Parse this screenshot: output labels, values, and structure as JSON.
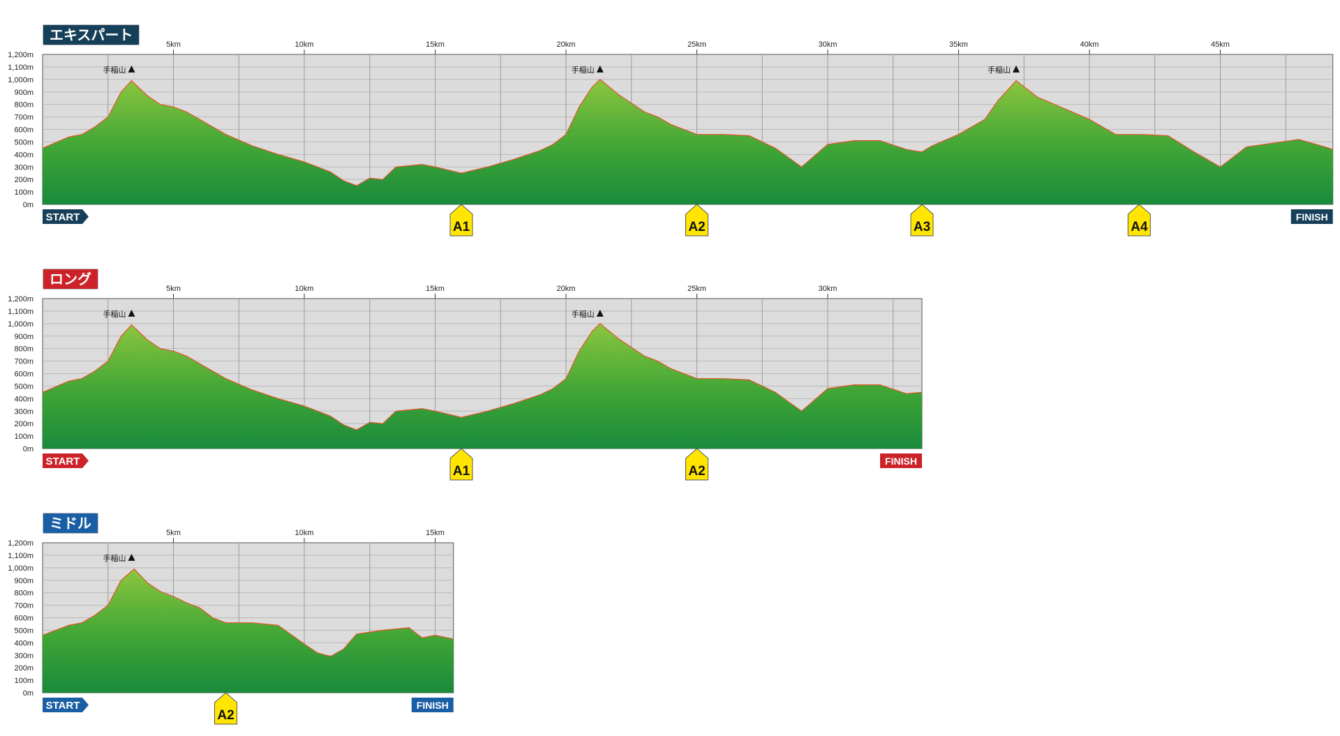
{
  "courses": [
    {
      "name": "エキスパート",
      "color": "#163f59",
      "distance_km": 49.3,
      "km_ticks": [
        5,
        10,
        15,
        20,
        25,
        30,
        35,
        40,
        45
      ],
      "y_ticks": [
        "1,200m",
        "1,100m",
        "1,000m",
        "900m",
        "800m",
        "700m",
        "600m",
        "500m",
        "400m",
        "300m",
        "200m",
        "100m",
        "0m"
      ],
      "start_label": "START",
      "finish_label": "FINISH",
      "aid_stations": [
        {
          "label": "A1",
          "km": 16.0
        },
        {
          "label": "A2",
          "km": 25.0
        },
        {
          "label": "A3",
          "km": 33.6
        },
        {
          "label": "A4",
          "km": 41.9
        }
      ],
      "peaks": [
        {
          "label": "手稲山",
          "km": 3.4
        },
        {
          "label": "手稲山",
          "km": 21.3
        },
        {
          "label": "手稲山",
          "km": 37.2
        }
      ]
    },
    {
      "name": "ロング",
      "color": "#cc2229",
      "distance_km": 33.6,
      "km_ticks": [
        5,
        10,
        15,
        20,
        25,
        30
      ],
      "y_ticks": [
        "1,200m",
        "1,100m",
        "1,000m",
        "900m",
        "800m",
        "700m",
        "600m",
        "500m",
        "400m",
        "300m",
        "200m",
        "100m",
        "0m"
      ],
      "start_label": "START",
      "finish_label": "FINISH",
      "aid_stations": [
        {
          "label": "A1",
          "km": 16.0
        },
        {
          "label": "A2",
          "km": 25.0
        }
      ],
      "peaks": [
        {
          "label": "手稲山",
          "km": 3.4
        },
        {
          "label": "手稲山",
          "km": 21.3
        }
      ]
    },
    {
      "name": "ミドル",
      "color": "#1a5fa6",
      "distance_km": 15.7,
      "km_ticks": [
        5,
        10,
        15
      ],
      "y_ticks": [
        "1,200m",
        "1,100m",
        "1,000m",
        "900m",
        "800m",
        "700m",
        "600m",
        "500m",
        "400m",
        "300m",
        "200m",
        "100m",
        "0m"
      ],
      "start_label": "START",
      "finish_label": "FINISH",
      "aid_stations": [
        {
          "label": "A2",
          "km": 7.0
        }
      ],
      "peaks": [
        {
          "label": "手稲山",
          "km": 3.4
        }
      ]
    }
  ],
  "chart_data": [
    {
      "type": "area",
      "title": "エキスパート",
      "x_unit": "km",
      "y_unit": "m",
      "xlim": [
        0,
        49.3
      ],
      "ylim": [
        0,
        1200
      ],
      "x": [
        0,
        1,
        1.5,
        2,
        2.5,
        3,
        3.4,
        4,
        4.5,
        5,
        5.5,
        6,
        7,
        8,
        9,
        10,
        11,
        11.5,
        12,
        12.5,
        13,
        13.5,
        14,
        14.5,
        15,
        16,
        17,
        18,
        19,
        19.5,
        20,
        20.5,
        21,
        21.3,
        22,
        23,
        23.5,
        24,
        25,
        26,
        27,
        28,
        29,
        30,
        31,
        32,
        33,
        33.6,
        34,
        35,
        36,
        36.5,
        37.2,
        38,
        39,
        40,
        41,
        42,
        43,
        44,
        45,
        46,
        47,
        48,
        49,
        49.3
      ],
      "y": [
        450,
        540,
        560,
        620,
        700,
        900,
        990,
        870,
        800,
        780,
        740,
        680,
        560,
        470,
        400,
        340,
        260,
        190,
        150,
        210,
        200,
        300,
        310,
        320,
        300,
        250,
        300,
        360,
        430,
        480,
        560,
        780,
        940,
        1000,
        880,
        740,
        700,
        640,
        560,
        560,
        550,
        450,
        300,
        480,
        510,
        510,
        440,
        420,
        470,
        560,
        680,
        830,
        990,
        860,
        770,
        680,
        560,
        560,
        550,
        420,
        300,
        460,
        490,
        520,
        460,
        440
      ]
    },
    {
      "type": "area",
      "title": "ロング",
      "x_unit": "km",
      "y_unit": "m",
      "xlim": [
        0,
        33.6
      ],
      "ylim": [
        0,
        1200
      ],
      "x": [
        0,
        1,
        1.5,
        2,
        2.5,
        3,
        3.4,
        4,
        4.5,
        5,
        5.5,
        6,
        7,
        8,
        9,
        10,
        11,
        11.5,
        12,
        12.5,
        13,
        13.5,
        14,
        14.5,
        15,
        16,
        17,
        18,
        19,
        19.5,
        20,
        20.5,
        21,
        21.3,
        22,
        23,
        23.5,
        24,
        25,
        26,
        27,
        28,
        29,
        30,
        31,
        32,
        33,
        33.6
      ],
      "y": [
        450,
        540,
        560,
        620,
        700,
        900,
        990,
        870,
        800,
        780,
        740,
        680,
        560,
        470,
        400,
        340,
        260,
        190,
        150,
        210,
        200,
        300,
        310,
        320,
        300,
        250,
        300,
        360,
        430,
        480,
        560,
        780,
        940,
        1000,
        880,
        740,
        700,
        640,
        560,
        560,
        550,
        450,
        300,
        480,
        510,
        510,
        440,
        450
      ]
    },
    {
      "type": "area",
      "title": "ミドル",
      "x_unit": "km",
      "y_unit": "m",
      "xlim": [
        0,
        15.7
      ],
      "ylim": [
        0,
        1200
      ],
      "x": [
        0,
        1,
        1.5,
        2,
        2.5,
        3,
        3.5,
        4,
        4.5,
        5,
        5.5,
        6,
        6.5,
        7,
        8,
        9,
        10,
        10.5,
        11,
        11.5,
        12,
        13,
        14,
        14.5,
        15,
        15.7
      ],
      "y": [
        460,
        540,
        560,
        620,
        700,
        900,
        990,
        880,
        810,
        770,
        720,
        680,
        600,
        560,
        560,
        540,
        390,
        320,
        290,
        350,
        470,
        500,
        520,
        440,
        460,
        430
      ]
    }
  ]
}
